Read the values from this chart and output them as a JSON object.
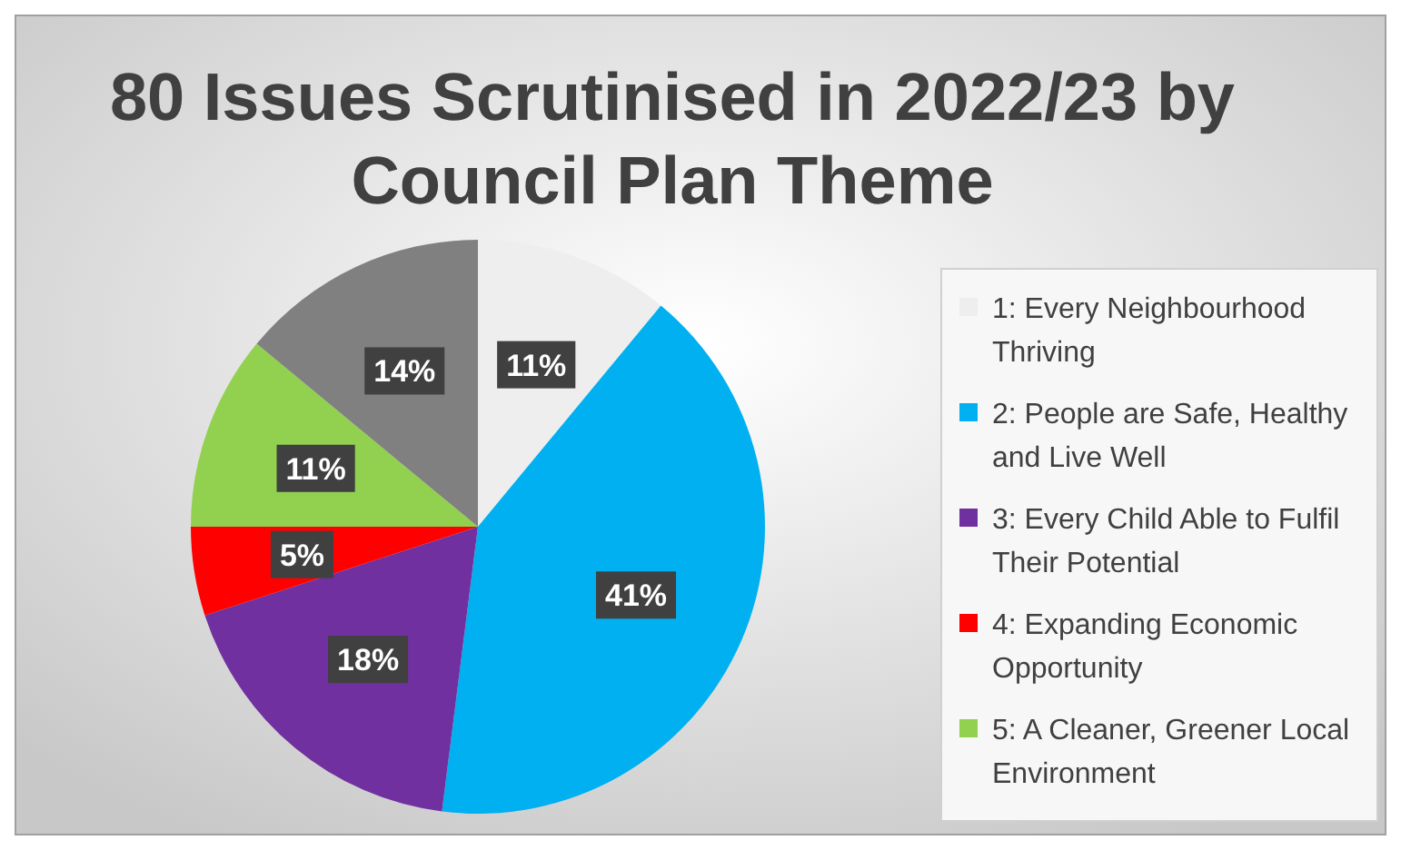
{
  "chart_data": {
    "type": "pie",
    "title": "80 Issues Scrutinised in 2022/23 by Council Plan Theme",
    "categories": [
      "1: Every Neighbourhood Thriving",
      "2: People are Safe, Healthy and Live Well",
      "3: Every Child Able to Fulfil Their Potential",
      "4: Expanding Economic Opportunity",
      "5: A Cleaner, Greener Local Environment",
      null
    ],
    "values": [
      11,
      41,
      18,
      5,
      11,
      14
    ],
    "colors": [
      "#eeeeee",
      "#00b0f0",
      "#7030a0",
      "#ff0000",
      "#92d050",
      "#808080"
    ],
    "value_labels": [
      "11%",
      "41%",
      "18%",
      "5%",
      "11%",
      "14%"
    ],
    "legend": "right"
  }
}
